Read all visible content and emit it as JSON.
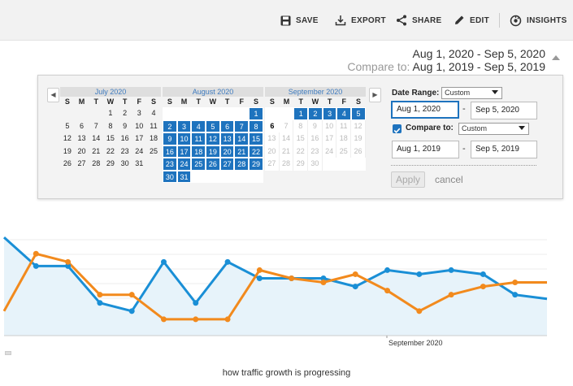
{
  "toolbar": {
    "save": "SAVE",
    "export": "EXPORT",
    "share": "SHARE",
    "edit": "EDIT",
    "insights": "INSIGHTS"
  },
  "header": {
    "date_range": "Aug 1, 2020 - Sep 5, 2020",
    "compare_prefix": "Compare to:",
    "compare_range": "Aug 1, 2019 - Sep 5, 2019"
  },
  "calendar": {
    "weekdays": [
      "S",
      "M",
      "T",
      "W",
      "T",
      "F",
      "S"
    ],
    "months": [
      {
        "name": "July 2020",
        "days": [
          "",
          "",
          "",
          "1",
          "2",
          "3",
          "4",
          "5",
          "6",
          "7",
          "8",
          "9",
          "10",
          "11",
          "12",
          "13",
          "14",
          "15",
          "16",
          "17",
          "18",
          "19",
          "20",
          "21",
          "22",
          "23",
          "24",
          "25",
          "26",
          "27",
          "28",
          "29",
          "30",
          "31",
          ""
        ],
        "selected": []
      },
      {
        "name": "August 2020",
        "days": [
          "",
          "",
          "",
          "",
          "",
          "",
          "1",
          "2",
          "3",
          "4",
          "5",
          "6",
          "7",
          "8",
          "9",
          "10",
          "11",
          "12",
          "13",
          "14",
          "15",
          "16",
          "17",
          "18",
          "19",
          "20",
          "21",
          "22",
          "23",
          "24",
          "25",
          "26",
          "27",
          "28",
          "29",
          "30",
          "31",
          "",
          "",
          "",
          "",
          ""
        ],
        "selected": [
          "1",
          "2",
          "3",
          "4",
          "5",
          "6",
          "7",
          "8",
          "9",
          "10",
          "11",
          "12",
          "13",
          "14",
          "15",
          "16",
          "17",
          "18",
          "19",
          "20",
          "21",
          "22",
          "23",
          "24",
          "25",
          "26",
          "27",
          "28",
          "29",
          "30",
          "31"
        ]
      },
      {
        "name": "September 2020",
        "days": [
          "",
          "",
          "1",
          "2",
          "3",
          "4",
          "5",
          "6",
          "7",
          "8",
          "9",
          "10",
          "11",
          "12",
          "13",
          "14",
          "15",
          "16",
          "17",
          "18",
          "19",
          "20",
          "21",
          "22",
          "23",
          "24",
          "25",
          "26",
          "27",
          "28",
          "29",
          "30",
          "",
          "",
          ""
        ],
        "selected": [
          "1",
          "2",
          "3",
          "4",
          "5"
        ],
        "today": "6"
      }
    ]
  },
  "controls": {
    "date_range_label": "Date Range:",
    "date_range_value": "Custom",
    "start_date": "Aug 1, 2020",
    "end_date": "Sep 5, 2020",
    "compare_label": "Compare to:",
    "compare_value": "Custom",
    "compare_start": "Aug 1, 2019",
    "compare_end": "Sep 5, 2019",
    "apply": "Apply",
    "cancel": "cancel"
  },
  "chart_data": {
    "type": "line",
    "xlabel": "September 2020",
    "series": [
      {
        "color": "#1a8fd6",
        "values": [
          11,
          7.5,
          7.5,
          3,
          2,
          8,
          3,
          8,
          6,
          6,
          6,
          5,
          7,
          6.5,
          7,
          6.5,
          4,
          3.5
        ]
      },
      {
        "color": "#f28a1d",
        "values": [
          2,
          9,
          8,
          4,
          4,
          1,
          1,
          1,
          7,
          6,
          5.5,
          6.5,
          4.5,
          2,
          4,
          5,
          5.5,
          5.5
        ]
      }
    ],
    "ylim": [
      0,
      12
    ]
  },
  "caption": "how traffic growth is progressing"
}
